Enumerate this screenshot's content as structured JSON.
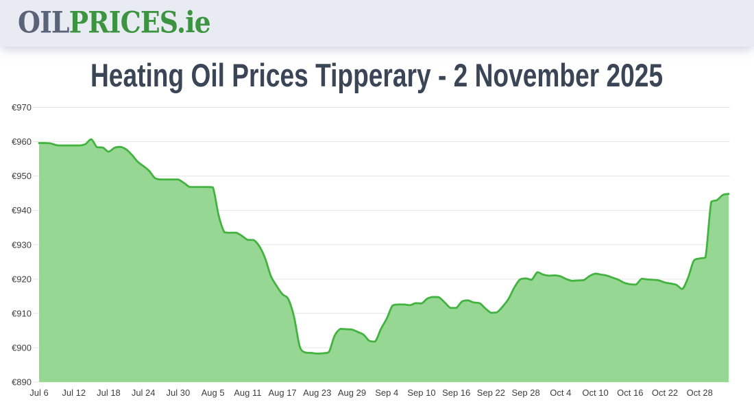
{
  "header": {
    "logo": {
      "part1": "OIL",
      "part2": "PRICES",
      "part3": ".ie"
    }
  },
  "title": "Heating Oil Prices Tipperary - 2 November 2025",
  "chart_data": {
    "type": "area",
    "title": "Heating Oil Prices Tipperary - 2 November 2025",
    "x_start_date": "2025-07-06",
    "x_end_date": "2025-11-02",
    "x_interval": "daily",
    "x_tick_labels": [
      "Jul 6",
      "Jul 12",
      "Jul 18",
      "Jul 24",
      "Jul 30",
      "Aug 5",
      "Aug 11",
      "Aug 17",
      "Aug 23",
      "Aug 29",
      "Sep 4",
      "Sep 10",
      "Sep 16",
      "Sep 22",
      "Sep 28",
      "Oct 4",
      "Oct 10",
      "Oct 16",
      "Oct 22",
      "Oct 28"
    ],
    "x_tick_day_indices": [
      0,
      6,
      12,
      18,
      24,
      30,
      36,
      42,
      48,
      54,
      60,
      66,
      72,
      78,
      84,
      90,
      96,
      102,
      108,
      114
    ],
    "y_tick_labels": [
      "€970",
      "€960",
      "€950",
      "€940",
      "€930",
      "€920",
      "€910",
      "€900",
      "€890"
    ],
    "y_tick_values": [
      970,
      960,
      950,
      940,
      930,
      920,
      910,
      900,
      890
    ],
    "ylim": [
      890,
      970
    ],
    "currency_prefix": "€",
    "grid": true,
    "legend": false,
    "colors": {
      "line": "#42b33f",
      "fill": "#97d794",
      "grid": "#e5e5e5",
      "axis_text": "#3d3d3d",
      "title_text": "#3a4556",
      "header_bg": "#e9ebf2",
      "logo_gray": "#5a6377",
      "logo_green": "#3c9440"
    },
    "values": [
      959.6,
      959.6,
      959.5,
      959.0,
      958.9,
      958.9,
      958.9,
      958.9,
      959.3,
      960.7,
      958.4,
      958.3,
      957.1,
      958.2,
      958.5,
      957.8,
      956.2,
      954.2,
      952.9,
      951.5,
      949.4,
      949.0,
      949.0,
      949.0,
      949.0,
      948.0,
      946.8,
      946.8,
      946.8,
      946.8,
      946.7,
      938.5,
      933.6,
      933.5,
      933.5,
      932.6,
      931.4,
      931.4,
      929.6,
      926.1,
      920.9,
      918.0,
      915.6,
      914.2,
      909.0,
      900.3,
      898.6,
      898.5,
      898.3,
      898.4,
      898.7,
      903.5,
      905.5,
      905.4,
      905.3,
      904.6,
      903.8,
      902.0,
      901.8,
      905.5,
      908.5,
      912.3,
      912.6,
      912.6,
      912.4,
      913.0,
      912.9,
      914.3,
      914.8,
      914.7,
      913.2,
      911.6,
      911.6,
      913.5,
      913.8,
      913.2,
      913.0,
      911.5,
      910.2,
      910.3,
      912.0,
      914.2,
      917.5,
      919.9,
      920.2,
      919.8,
      922.0,
      921.3,
      921.0,
      921.1,
      920.8,
      920.0,
      919.5,
      919.6,
      919.7,
      920.9,
      921.6,
      921.3,
      921.0,
      920.4,
      919.8,
      918.9,
      918.5,
      918.4,
      920.1,
      919.9,
      919.8,
      919.6,
      919.0,
      918.7,
      918.3,
      917.1,
      920.4,
      925.4,
      926.0,
      926.3,
      942.5,
      943.0,
      944.5,
      944.8
    ]
  }
}
